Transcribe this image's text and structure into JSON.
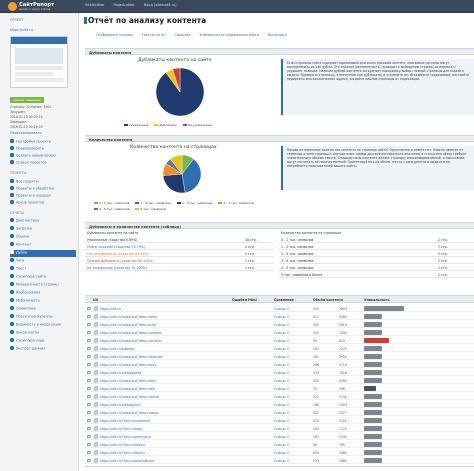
{
  "header": {
    "logo_text": "СайтРепорт",
    "logo_sub": "анализ и аудит сайтов",
    "nav": [
      "SiteAuditor",
      "PageAuditor",
      "Вход (siteaudit.ru)"
    ]
  },
  "sidebar": {
    "project_label": "Проект",
    "site_url": "https://site.ru",
    "status_badge": "Анализ завершён",
    "meta": [
      "Страниц: 22 Лимит: 3000",
      "Запущен:",
      "2016.01.10 00:09:14",
      "Завершен:",
      "2016.01.10 00:14:03"
    ],
    "rescan_link": "Пересканировать",
    "settings": [
      "Настройки проекта",
      "Перепроверить",
      "Создать новый проект",
      "Список проектов"
    ],
    "reports_label": "Проекты",
    "reports": [
      "Все проекты",
      "Проекты в обработке",
      "Проекты в очереди",
      "Архив проектов"
    ],
    "analysis_label": "Отчёты",
    "analysis": [
      "Диагностика",
      "Загрузка",
      "Ссылки",
      "Контент",
      "Дубли",
      "Теги",
      "Текст",
      "Структура сайта",
      "Релевантность страниц",
      "Изображения",
      "Мобильность",
      "Семантика",
      "Поиск и конкуренты",
      "Видимость в индексации",
      "Анкор-листы",
      "Структура кода",
      "Экспорт данных"
    ],
    "active_index": 4
  },
  "page": {
    "title": "Отчёт по анализу контента",
    "tabs": [
      "Отображать полные",
      "Тексты по Url",
      "Сводные",
      "Уникальность содержания сайта",
      "Выгрузить"
    ],
    "selected_tab": -1
  },
  "duplicates": {
    "header": "Дубликаты контента",
    "chart_title": "Дубликаты контента на сайте",
    "legend": [
      "Уникальные",
      "Дубликаты",
      "Не уникальные"
    ],
    "info": "Если страницы сайта содержат одинаковый или очень похожий контент, поисковые системы могут воспринимать их как дубли. Это снижает релевантность, приводит к выпадению страниц из индекса и ухудшает позиции. Наличие дублей контента затрудняет поисковику выбор главной страницы для показа в выдаче. Проверьте страницы, отмеченные как дубликаты, и устраните их: объедините содержимое, настройте редиректы или канонические адреса, закройте лишние страницы от индексации."
  },
  "amount": {
    "header": "Количество контента",
    "chart_title": "Количество контента на страницах",
    "legend": [
      "0 - 1 тыс. символов",
      "1 - 2 тыс. символов",
      "2 - 3 тыс. символов",
      "3 - 4 тыс. символов",
      "4 - 5 тыс. символов",
      "5 тыс. символов"
    ],
    "info": "Каково оптимальное количество контента на странице сайта? Однозначного ответа нет. Многое зависит от тематики и типа страницы: для карточки товара достаточно короткого описания, а статья или обзор требуют значительного объёма текста. Слишком мало контента делает страницу малоинформативной, и поисковики могут посчитать её некачественной. Ориентируйтесь на объём текста у конкурентов в выдаче и на потребности пользователей вашего сайта."
  },
  "table_section": {
    "header": "Дубликаты и количество контента (таблица)",
    "left_title": "Дубликаты контента на сайте",
    "left_rows": [
      {
        "k": "Уникальные (сходство 0-69%)",
        "v": "18 стр."
      },
      {
        "k": "Очень похожие (сходство 70-79%)",
        "v": "0 стр."
      },
      {
        "k": "Почти дубликаты (сходство 80-89%)",
        "v": "0 стр."
      },
      {
        "k": "Полные дубликаты (сходство 90-100%)",
        "v": "1 стр."
      },
      {
        "k": "Не уникальные (сходство 70-100%)",
        "v": "1 стр."
      }
    ],
    "right_title": "Количество контента на страницах",
    "right_rows": [
      {
        "k": "0 - 1 тыс. символов",
        "v": "2 стр."
      },
      {
        "k": "1 - 2 тыс. символов",
        "v": "7 стр."
      },
      {
        "k": "2 - 3 тыс. символов",
        "v": "5 стр."
      },
      {
        "k": "3 - 4 тыс. символов",
        "v": "2 стр."
      },
      {
        "k": "4 - 5 тыс. символов",
        "v": "1 стр."
      },
      {
        "k": "5 тыс. символов и более",
        "v": "2 стр."
      }
    ]
  },
  "pages_table": {
    "columns": [
      "Url",
      "Ошибки Html",
      "Сравнение",
      "Объём контента",
      "Уникальность"
    ],
    "sub_columns": [
      "Слов",
      "Символов"
    ],
    "rows": [
      {
        "url": "https://site.ru",
        "err": "",
        "cmp": "Ссылок 0",
        "words": "319",
        "chars": "2803",
        "u": ""
      },
      {
        "url": "https://site.ru/index.php?item=beton",
        "err": "",
        "cmp": "Ссылок 0",
        "words": "417",
        "chars": "3260",
        "u": ""
      },
      {
        "url": "https://site.ru/index.php?item=price",
        "err": "",
        "cmp": "Ссылок 0",
        "words": "302",
        "chars": "2615",
        "u": ""
      },
      {
        "url": "https://site.ru/index.php?item=samples",
        "err": "",
        "cmp": "Ссылок 0",
        "words": "195",
        "chars": "1430",
        "u": ""
      },
      {
        "url": "https://site.ru/index.php?item=contacts",
        "err": "",
        "cmp": "Ссылок 0",
        "words": "95",
        "chars": "813",
        "u": "Полный дубликат"
      },
      {
        "url": "https://site.ru/kolodtsy",
        "err": "",
        "cmp": "Ссылок 0",
        "words": "167",
        "chars": "1270",
        "u": ""
      },
      {
        "url": "https://site.ru/index.php?item=dostavka",
        "err": "",
        "cmp": "Ссылок 0",
        "words": "341",
        "chars": "2950",
        "u": ""
      },
      {
        "url": "https://site.ru/index.php?item=kolca",
        "err": "",
        "cmp": "Ссылок 0",
        "words": "268",
        "chars": "2110",
        "u": ""
      },
      {
        "url": "https://site.ru/catalog/plita",
        "err": "",
        "cmp": "Ссылок 0",
        "words": "133",
        "chars": "1018",
        "u": ""
      },
      {
        "url": "https://site.ru/index.php?item=bloki",
        "err": "",
        "cmp": "Ссылок 0",
        "words": "520",
        "chars": "4390",
        "u": ""
      },
      {
        "url": "https://site.ru/index.php?item=lotki",
        "err": "",
        "cmp": "Ссылок 0",
        "words": "74",
        "chars": "598",
        "u": "Уникальное"
      },
      {
        "url": "https://site.ru/index.php?item=trotuar",
        "err": "",
        "cmp": "Ссылок 0",
        "words": "221",
        "chars": "1742",
        "u": ""
      },
      {
        "url": "https://site.ru/catalog/svai",
        "err": "",
        "cmp": "Ссылок 0",
        "words": "188",
        "chars": "1503",
        "u": ""
      },
      {
        "url": "https://site.ru/index.php?item=zabory",
        "err": "",
        "cmp": "Ссылок 0",
        "words": "402",
        "chars": "3377",
        "u": ""
      },
      {
        "url": "https://site.ru/?item=fundament",
        "err": "",
        "cmp": "Ссылок 0",
        "words": "610",
        "chars": "5102",
        "u": ""
      },
      {
        "url": "https://site.ru/?item=stolby",
        "err": "",
        "cmp": "Ссылок 0",
        "words": "143",
        "chars": "1120",
        "u": ""
      },
      {
        "url": "https://site.ru/?item=perekrytiya",
        "err": "",
        "cmp": "Ссылок 0",
        "words": "287",
        "chars": "2245",
        "u": ""
      },
      {
        "url": "https://site.ru/?item=bordyur",
        "err": "",
        "cmp": "Ссылок 0",
        "words": "98",
        "chars": "765",
        "u": ""
      },
      {
        "url": "https://site.ru/?item=lestnicy",
        "err": "",
        "cmp": "Ссылок 0",
        "words": "654",
        "chars": "5480",
        "u": ""
      },
      {
        "url": "https://site.ru/?item=ograzhdeniya",
        "err": "",
        "cmp": "Ссылок 0",
        "words": "233",
        "chars": "1880",
        "u": ""
      }
    ]
  },
  "colors": {
    "accent": "#2f6fb0",
    "dark_blue": "#1f3a6e",
    "yellow": "#f0c419",
    "red": "#d03b32"
  },
  "chart_data": [
    {
      "type": "pie",
      "title": "Дубликаты контента на сайте",
      "categories": [
        "Уникальные",
        "Дубликаты",
        "Не уникальные"
      ],
      "values": [
        18,
        1,
        1
      ],
      "colors": [
        "#1f3a6e",
        "#f0c419",
        "#d03b32"
      ],
      "legend": "bottom"
    },
    {
      "type": "pie",
      "title": "Количество контента на страницах",
      "categories": [
        "0 - 1 тыс. символов",
        "1 - 2 тыс. символов",
        "2 - 3 тыс. символов",
        "3 - 4 тыс. символов",
        "4 - 5 тыс. символов",
        "5 тыс. символов"
      ],
      "values": [
        2,
        7,
        5,
        2,
        1,
        2
      ],
      "colors": [
        "#7ab648",
        "#2f6fb0",
        "#1f3a6e",
        "#f28c28",
        "#5b7aa0",
        "#e8c31a"
      ],
      "legend": "bottom"
    }
  ]
}
